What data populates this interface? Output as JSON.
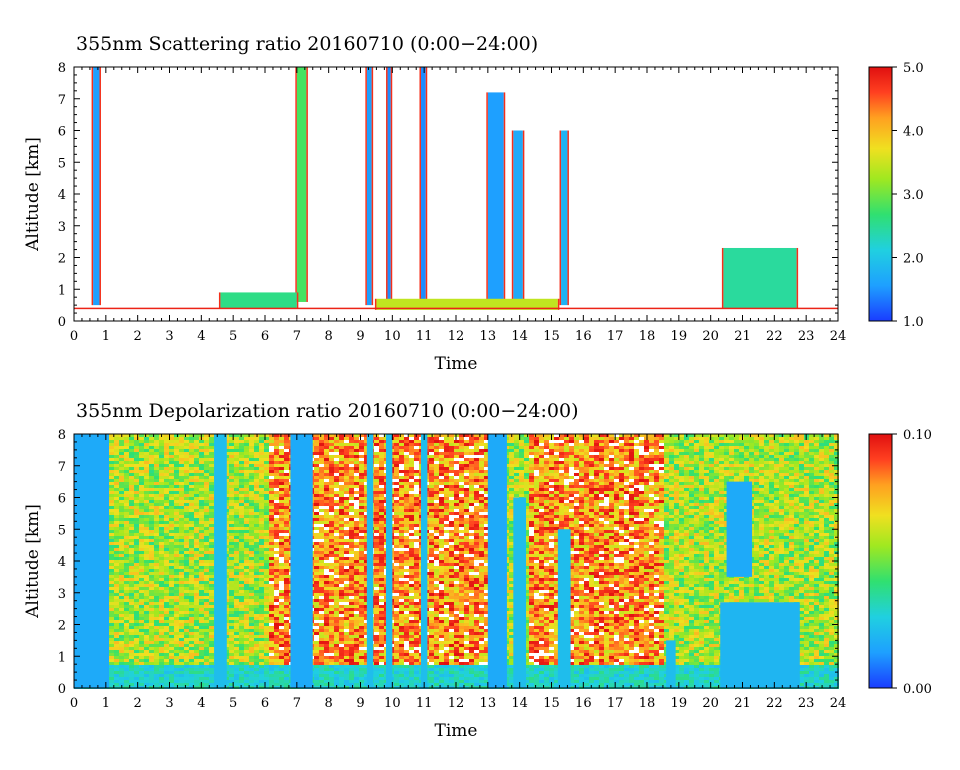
{
  "chart_data": [
    {
      "type": "heatmap",
      "title": "355nm Scattering ratio  20160710 (0:00−24:00)",
      "xlabel": "Time",
      "ylabel": "Altitude [km]",
      "xlim": [
        0,
        24
      ],
      "ylim": [
        0,
        8
      ],
      "x_ticks": [
        "0",
        "1",
        "2",
        "3",
        "4",
        "5",
        "6",
        "7",
        "8",
        "9",
        "10",
        "11",
        "12",
        "13",
        "14",
        "15",
        "16",
        "17",
        "18",
        "19",
        "20",
        "21",
        "22",
        "23",
        "24"
      ],
      "y_ticks": [
        "0",
        "1",
        "2",
        "3",
        "4",
        "5",
        "6",
        "7",
        "8"
      ],
      "colorbar": {
        "range": [
          1.0,
          5.0
        ],
        "tick_labels": [
          "1.0",
          "2.0",
          "3.0",
          "4.0",
          "5.0"
        ],
        "colors": [
          "#1a3cff",
          "#1ea0ff",
          "#20d0e0",
          "#30e070",
          "#a0e820",
          "#f0e020",
          "#ffa020",
          "#ff4020",
          "#e01010"
        ]
      },
      "background": "#ffffff",
      "features": [
        {
          "type": "column",
          "t0": 0.6,
          "t1": 0.8,
          "a0": 0.5,
          "a1": 8,
          "level": 1.5
        },
        {
          "type": "column",
          "t0": 7.0,
          "t1": 7.3,
          "a0": 0.6,
          "a1": 8,
          "level": 2.6
        },
        {
          "type": "column",
          "t0": 9.2,
          "t1": 9.35,
          "a0": 0.5,
          "a1": 8,
          "level": 1.5
        },
        {
          "type": "column",
          "t0": 9.85,
          "t1": 9.95,
          "a0": 0.5,
          "a1": 8,
          "level": 1.4
        },
        {
          "type": "column",
          "t0": 10.9,
          "t1": 11.05,
          "a0": 0.5,
          "a1": 8,
          "level": 1.4
        },
        {
          "type": "column",
          "t0": 13.0,
          "t1": 13.5,
          "a0": 0.5,
          "a1": 7.2,
          "level": 1.5
        },
        {
          "type": "column",
          "t0": 13.8,
          "t1": 14.1,
          "a0": 0.5,
          "a1": 6.0,
          "level": 1.6
        },
        {
          "type": "column",
          "t0": 15.3,
          "t1": 15.5,
          "a0": 0.5,
          "a1": 6.0,
          "level": 1.7
        },
        {
          "type": "column",
          "t0": 20.4,
          "t1": 22.7,
          "a0": 0.4,
          "a1": 2.3,
          "level": 2.3
        },
        {
          "type": "layer",
          "t0": 9.5,
          "t1": 15.2,
          "a0": 0.35,
          "a1": 0.7,
          "level": 3.2
        },
        {
          "type": "layer",
          "t0": 4.6,
          "t1": 7.0,
          "a0": 0.4,
          "a1": 0.9,
          "level": 2.4
        },
        {
          "type": "layer",
          "t0": 0,
          "t1": 24,
          "a0": 0.3,
          "a1": 0.42,
          "level": 4.8
        }
      ]
    },
    {
      "type": "heatmap",
      "title": "355nm Depolarization ratio  20160710 (0:00−24:00)",
      "xlabel": "Time",
      "ylabel": "Altitude [km]",
      "xlim": [
        0,
        24
      ],
      "ylim": [
        0,
        8
      ],
      "x_ticks": [
        "0",
        "1",
        "2",
        "3",
        "4",
        "5",
        "6",
        "7",
        "8",
        "9",
        "10",
        "11",
        "12",
        "13",
        "14",
        "15",
        "16",
        "17",
        "18",
        "19",
        "20",
        "21",
        "22",
        "23",
        "24"
      ],
      "y_ticks": [
        "0",
        "1",
        "2",
        "3",
        "4",
        "5",
        "6",
        "7",
        "8"
      ],
      "colorbar": {
        "range": [
          0.0,
          0.1
        ],
        "tick_labels": [
          "0.00",
          "0.10"
        ],
        "colors": [
          "#1a3cff",
          "#1ea0ff",
          "#20d0e0",
          "#30e070",
          "#a0e820",
          "#f0e020",
          "#ffa020",
          "#ff4020",
          "#e01010"
        ]
      },
      "features": [
        {
          "type": "column",
          "t0": 0.0,
          "t1": 1.1,
          "a0": 0,
          "a1": 8,
          "level": 0.015
        },
        {
          "type": "column",
          "t0": 4.4,
          "t1": 4.8,
          "a0": 0,
          "a1": 8,
          "level": 0.02
        },
        {
          "type": "column",
          "t0": 6.8,
          "t1": 7.5,
          "a0": 0,
          "a1": 8,
          "level": 0.015
        },
        {
          "type": "column",
          "t0": 9.2,
          "t1": 9.4,
          "a0": 0,
          "a1": 8,
          "level": 0.02
        },
        {
          "type": "column",
          "t0": 9.8,
          "t1": 10.0,
          "a0": 0,
          "a1": 8,
          "level": 0.02
        },
        {
          "type": "column",
          "t0": 10.9,
          "t1": 11.1,
          "a0": 0,
          "a1": 8,
          "level": 0.02
        },
        {
          "type": "column",
          "t0": 13.0,
          "t1": 13.6,
          "a0": 0,
          "a1": 8,
          "level": 0.015
        },
        {
          "type": "column",
          "t0": 13.8,
          "t1": 14.2,
          "a0": 0,
          "a1": 6,
          "level": 0.02
        },
        {
          "type": "column",
          "t0": 15.2,
          "t1": 15.6,
          "a0": 0,
          "a1": 5,
          "level": 0.02
        },
        {
          "type": "column",
          "t0": 18.6,
          "t1": 18.9,
          "a0": 0,
          "a1": 1.5,
          "level": 0.02
        },
        {
          "type": "column",
          "t0": 20.3,
          "t1": 22.8,
          "a0": 0,
          "a1": 2.7,
          "level": 0.018
        },
        {
          "type": "column",
          "t0": 20.5,
          "t1": 21.3,
          "a0": 3.5,
          "a1": 6.5,
          "level": 0.015
        }
      ]
    }
  ]
}
